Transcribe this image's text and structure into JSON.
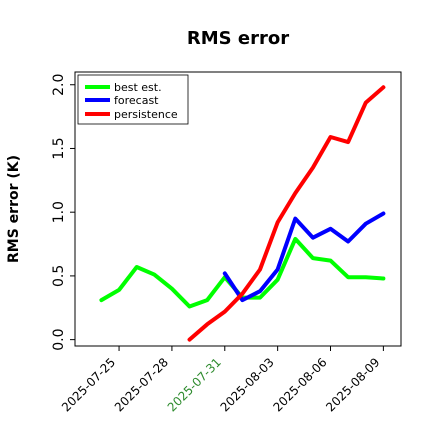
{
  "chart_data": {
    "type": "line",
    "title": "RMS error",
    "ylabel": "RMS error (K)",
    "xlabel": "",
    "ylim": [
      -0.05,
      2.1
    ],
    "xlim": [
      "2025-07-22T12:00",
      "2025-08-10T00:00"
    ],
    "grid": false,
    "legend_position": "top-left",
    "y_ticks": [
      {
        "value": 0.0,
        "label": "0.0"
      },
      {
        "value": 0.5,
        "label": "0.5"
      },
      {
        "value": 1.0,
        "label": "1.0"
      },
      {
        "value": 1.5,
        "label": "1.5"
      },
      {
        "value": 2.0,
        "label": "2.0"
      }
    ],
    "x_ticks": [
      {
        "value": "2025-07-25",
        "label": "2025-07-25",
        "color": "#000000"
      },
      {
        "value": "2025-07-28",
        "label": "2025-07-28",
        "color": "#000000"
      },
      {
        "value": "2025-07-31",
        "label": "2025-07-31",
        "color": "#2e8b2e"
      },
      {
        "value": "2025-08-03",
        "label": "2025-08-03",
        "color": "#000000"
      },
      {
        "value": "2025-08-06",
        "label": "2025-08-06",
        "color": "#000000"
      },
      {
        "value": "2025-08-09",
        "label": "2025-08-09",
        "color": "#000000"
      }
    ],
    "series": [
      {
        "name": "best est.",
        "color": "#00ff00",
        "points": [
          {
            "x": "2025-07-24T00:00",
            "y": 0.31
          },
          {
            "x": "2025-07-25T00:00",
            "y": 0.39
          },
          {
            "x": "2025-07-26T00:00",
            "y": 0.57
          },
          {
            "x": "2025-07-27T00:00",
            "y": 0.51
          },
          {
            "x": "2025-07-28T00:00",
            "y": 0.4
          },
          {
            "x": "2025-07-29T00:00",
            "y": 0.26
          },
          {
            "x": "2025-07-30T00:00",
            "y": 0.31
          },
          {
            "x": "2025-07-31T00:00",
            "y": 0.49
          },
          {
            "x": "2025-08-01T00:00",
            "y": 0.33
          },
          {
            "x": "2025-08-02T00:00",
            "y": 0.33
          },
          {
            "x": "2025-08-03T00:00",
            "y": 0.47
          },
          {
            "x": "2025-08-04T00:00",
            "y": 0.79
          },
          {
            "x": "2025-08-05T00:00",
            "y": 0.64
          },
          {
            "x": "2025-08-06T00:00",
            "y": 0.62
          },
          {
            "x": "2025-08-07T00:00",
            "y": 0.49
          },
          {
            "x": "2025-08-08T00:00",
            "y": 0.49
          },
          {
            "x": "2025-08-09T00:00",
            "y": 0.48
          }
        ]
      },
      {
        "name": "forecast",
        "color": "#0000ff",
        "points": [
          {
            "x": "2025-07-31T00:00",
            "y": 0.52
          },
          {
            "x": "2025-08-01T00:00",
            "y": 0.31
          },
          {
            "x": "2025-08-02T00:00",
            "y": 0.38
          },
          {
            "x": "2025-08-03T00:00",
            "y": 0.55
          },
          {
            "x": "2025-08-04T00:00",
            "y": 0.95
          },
          {
            "x": "2025-08-05T00:00",
            "y": 0.8
          },
          {
            "x": "2025-08-06T00:00",
            "y": 0.87
          },
          {
            "x": "2025-08-07T00:00",
            "y": 0.77
          },
          {
            "x": "2025-08-08T00:00",
            "y": 0.91
          },
          {
            "x": "2025-08-09T00:00",
            "y": 0.99
          }
        ]
      },
      {
        "name": "persistence",
        "color": "#ff0000",
        "points": [
          {
            "x": "2025-07-29T00:00",
            "y": 0.0
          },
          {
            "x": "2025-07-30T00:00",
            "y": 0.12
          },
          {
            "x": "2025-07-31T00:00",
            "y": 0.22
          },
          {
            "x": "2025-08-01T00:00",
            "y": 0.36
          },
          {
            "x": "2025-08-02T00:00",
            "y": 0.55
          },
          {
            "x": "2025-08-03T00:00",
            "y": 0.92
          },
          {
            "x": "2025-08-04T00:00",
            "y": 1.15
          },
          {
            "x": "2025-08-05T00:00",
            "y": 1.35
          },
          {
            "x": "2025-08-06T00:00",
            "y": 1.59
          },
          {
            "x": "2025-08-07T00:00",
            "y": 1.55
          },
          {
            "x": "2025-08-08T00:00",
            "y": 1.86
          },
          {
            "x": "2025-08-09T00:00",
            "y": 1.98
          }
        ]
      }
    ]
  }
}
